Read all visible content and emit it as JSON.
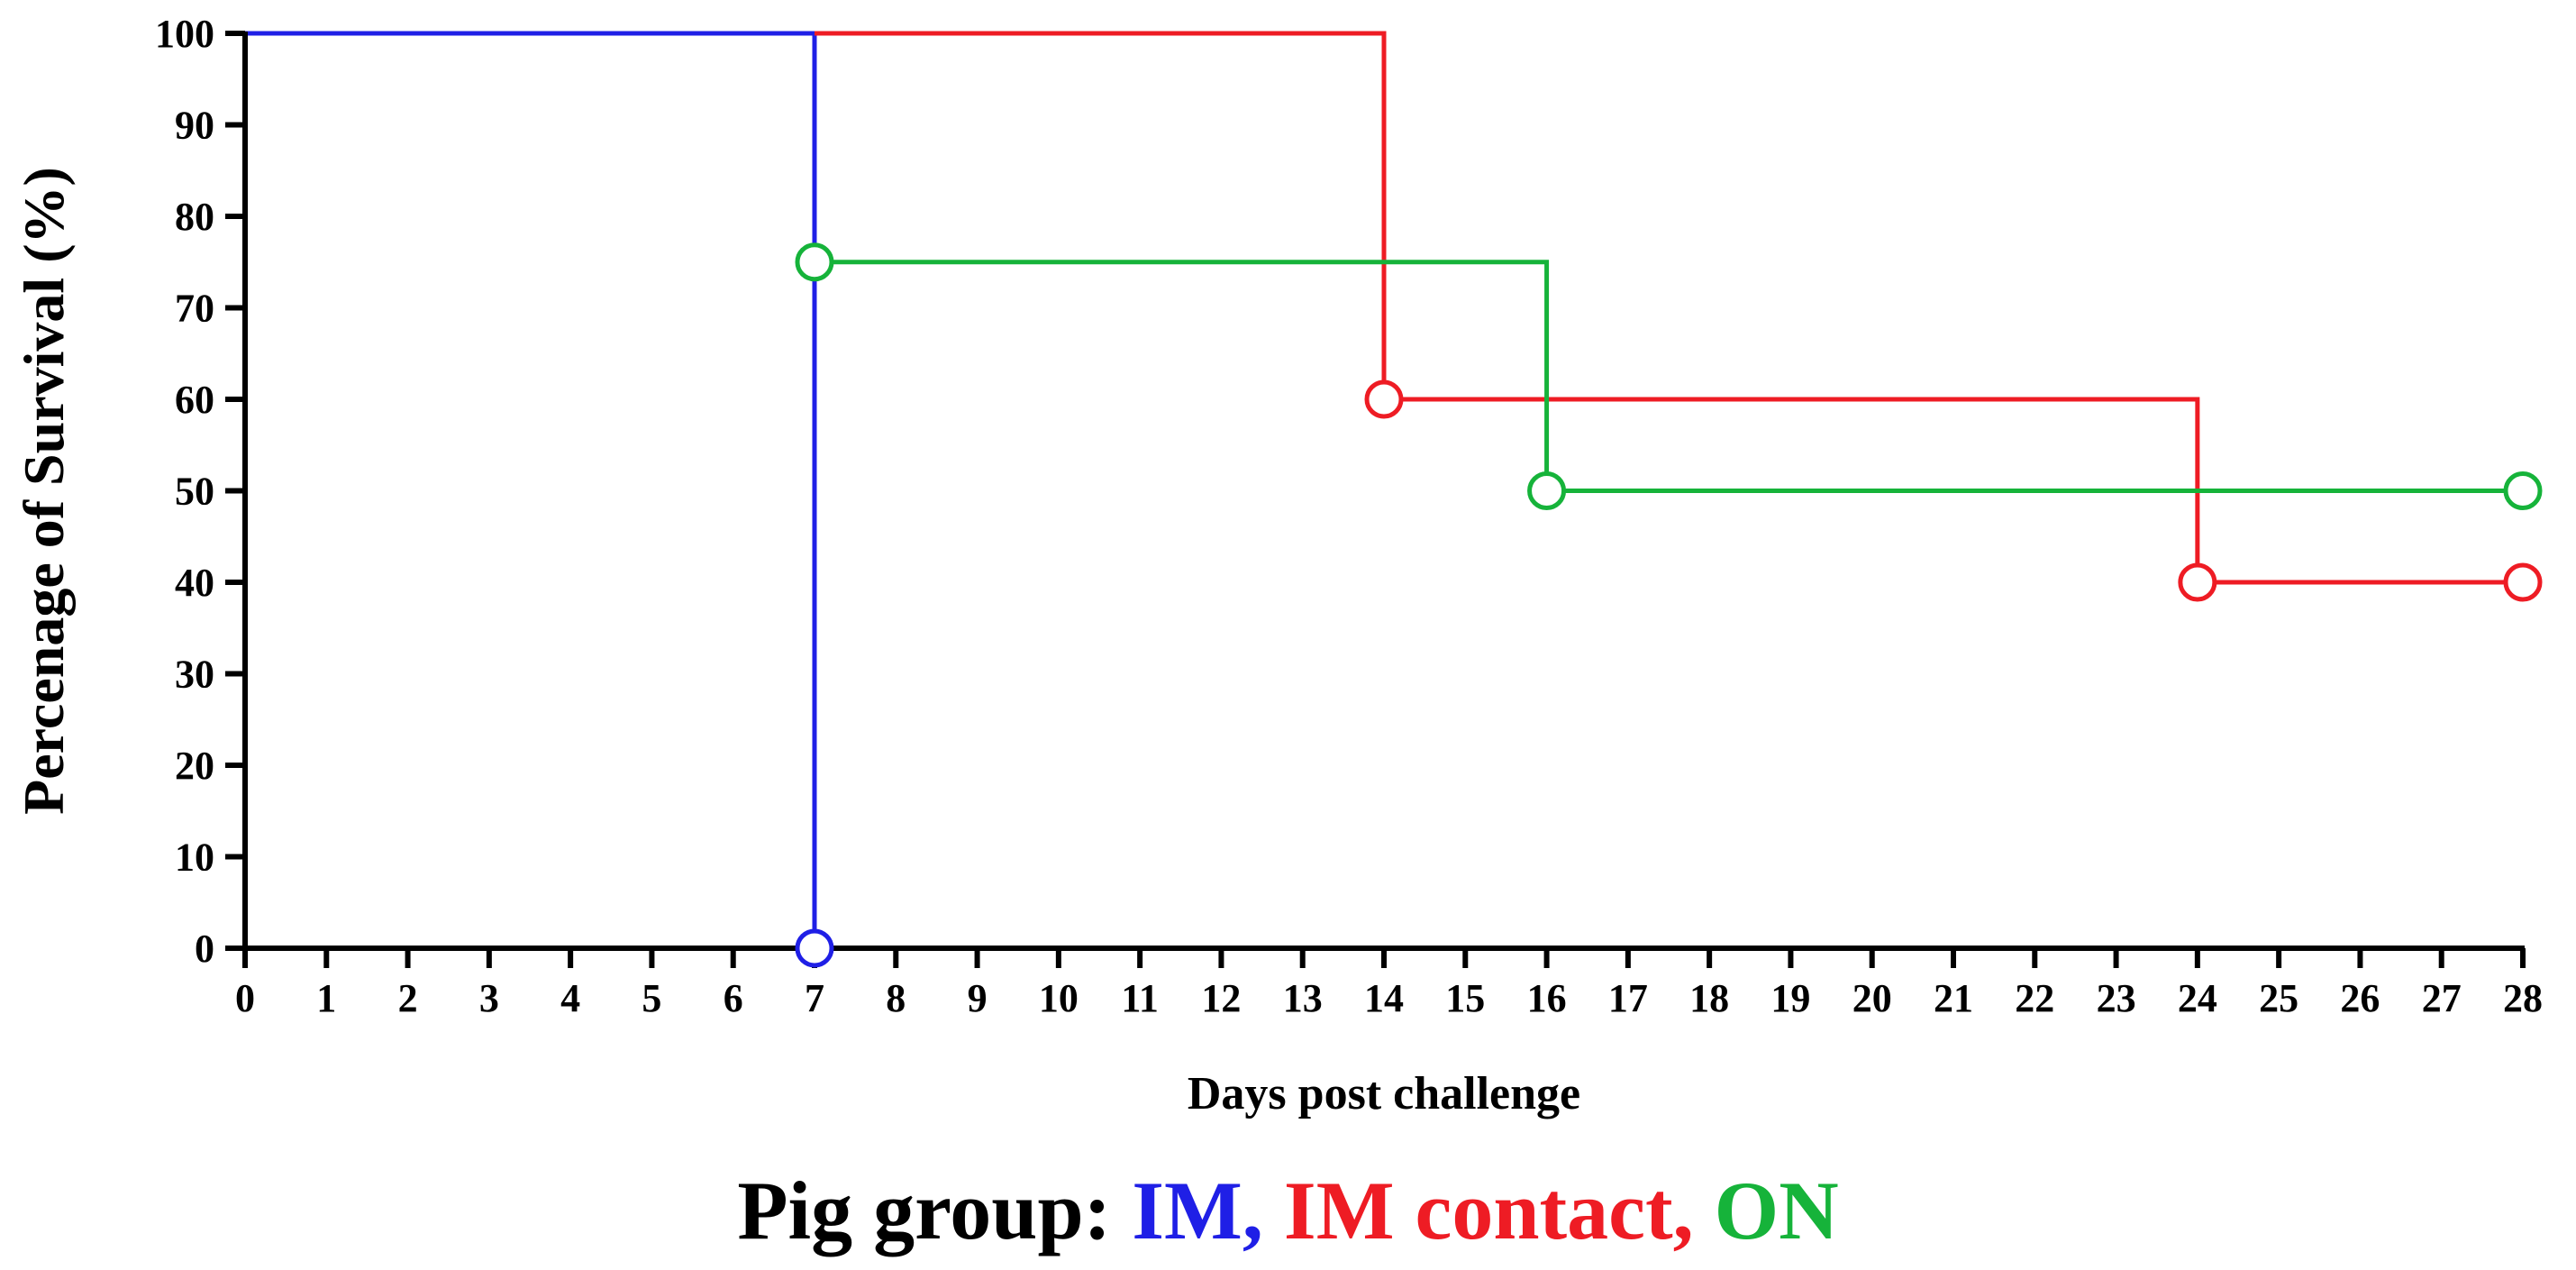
{
  "chart_data": {
    "type": "line",
    "step": true,
    "xlabel": "Days post challenge",
    "ylabel": "Percenage of Survival (%)",
    "xlim": [
      0,
      28
    ],
    "ylim": [
      0,
      100
    ],
    "xticks": [
      "0",
      "1",
      "2",
      "3",
      "4",
      "5",
      "6",
      "7",
      "8",
      "9",
      "10",
      "11",
      "12",
      "13",
      "14",
      "15",
      "16",
      "17",
      "18",
      "19",
      "20",
      "21",
      "22",
      "23",
      "24",
      "25",
      "26",
      "27",
      "28"
    ],
    "yticks": [
      "0",
      "10",
      "20",
      "30",
      "40",
      "50",
      "60",
      "70",
      "80",
      "90",
      "100"
    ],
    "grid": false,
    "legend": {
      "position": "bottom",
      "prefix": "Pig group: ",
      "entries": [
        {
          "label": "IM,",
          "color": "#1f1fe6"
        },
        {
          "label": "IM contact,",
          "color": "#ee1c24"
        },
        {
          "label": "ON",
          "color": "#16b33a"
        }
      ]
    },
    "series": [
      {
        "color": "#1f1fe6",
        "points": [
          [
            0,
            100
          ],
          [
            7,
            100
          ],
          [
            7,
            0
          ]
        ],
        "markers": [
          [
            7,
            0
          ]
        ]
      },
      {
        "color": "#ee1c24",
        "points": [
          [
            7,
            100
          ],
          [
            14,
            100
          ],
          [
            14,
            60
          ],
          [
            24,
            60
          ],
          [
            24,
            40
          ],
          [
            28,
            40
          ]
        ],
        "markers": [
          [
            14,
            60
          ],
          [
            24,
            40
          ],
          [
            28,
            40
          ]
        ]
      },
      {
        "color": "#16b33a",
        "points": [
          [
            7,
            75
          ],
          [
            16,
            75
          ],
          [
            16,
            50
          ],
          [
            28,
            50
          ]
        ],
        "markers": [
          [
            7,
            75
          ],
          [
            16,
            50
          ],
          [
            28,
            50
          ]
        ]
      }
    ]
  }
}
